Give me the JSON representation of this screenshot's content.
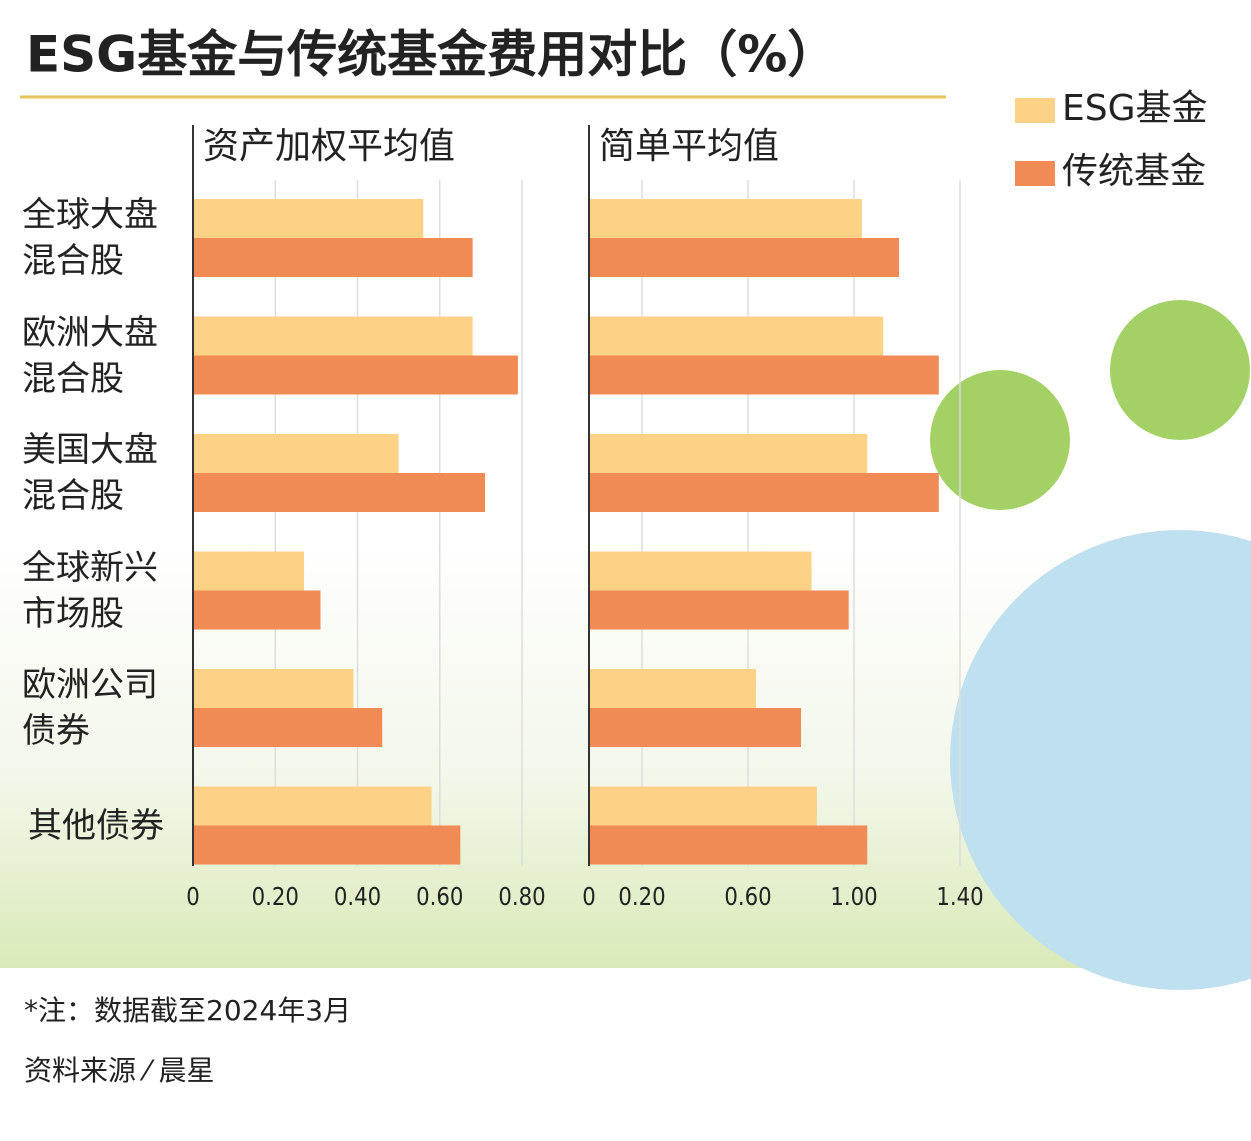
{
  "title": "ESG基金与传统基金费用对比（%）",
  "note": "*注：数据截至2024年3月",
  "source": "资料来源 ⁄ 晨星",
  "chart_data": [
    {
      "type": "hbar",
      "title": "资产加权平均值",
      "categories": [
        "全球大盘混合股",
        "欧洲大盘混合股",
        "美国大盘混合股",
        "全球新兴市场股",
        "欧洲公司债券",
        "其他债券"
      ],
      "series": [
        {
          "name": "ESG基金",
          "color": "#fdd287",
          "values": [
            0.56,
            0.68,
            0.5,
            0.27,
            0.39,
            0.58
          ]
        },
        {
          "name": "传统基金",
          "color": "#f08b55",
          "values": [
            0.68,
            0.79,
            0.71,
            0.31,
            0.46,
            0.65
          ]
        }
      ],
      "xlim": [
        0,
        0.8
      ],
      "xticks": [
        0,
        {
          "value": 0.2,
          "label": "0.20"
        },
        {
          "value": 0.4,
          "label": "0.40"
        },
        {
          "value": 0.6,
          "label": "0.60"
        },
        {
          "value": 0.8,
          "label": "0.80"
        }
      ],
      "grid": true
    },
    {
      "type": "hbar",
      "title": "简单平均值",
      "categories": [
        "全球大盘混合股",
        "欧洲大盘混合股",
        "美国大盘混合股",
        "全球新兴市场股",
        "欧洲公司债券",
        "其他债券"
      ],
      "series": [
        {
          "name": "ESG基金",
          "color": "#fdd287",
          "values": [
            1.03,
            1.11,
            1.05,
            0.84,
            0.63,
            0.86
          ]
        },
        {
          "name": "传统基金",
          "color": "#f08b55",
          "values": [
            1.17,
            1.32,
            1.32,
            0.98,
            0.8,
            1.05
          ]
        }
      ],
      "xlim": [
        0,
        1.4
      ],
      "xticks": [
        0,
        {
          "value": 0.2,
          "label": "0.20"
        },
        {
          "value": 0.6,
          "label": "0.60"
        },
        {
          "value": 1.0,
          "label": "1.00"
        },
        {
          "value": 1.4,
          "label": "1.40"
        }
      ],
      "grid": true
    }
  ]
}
